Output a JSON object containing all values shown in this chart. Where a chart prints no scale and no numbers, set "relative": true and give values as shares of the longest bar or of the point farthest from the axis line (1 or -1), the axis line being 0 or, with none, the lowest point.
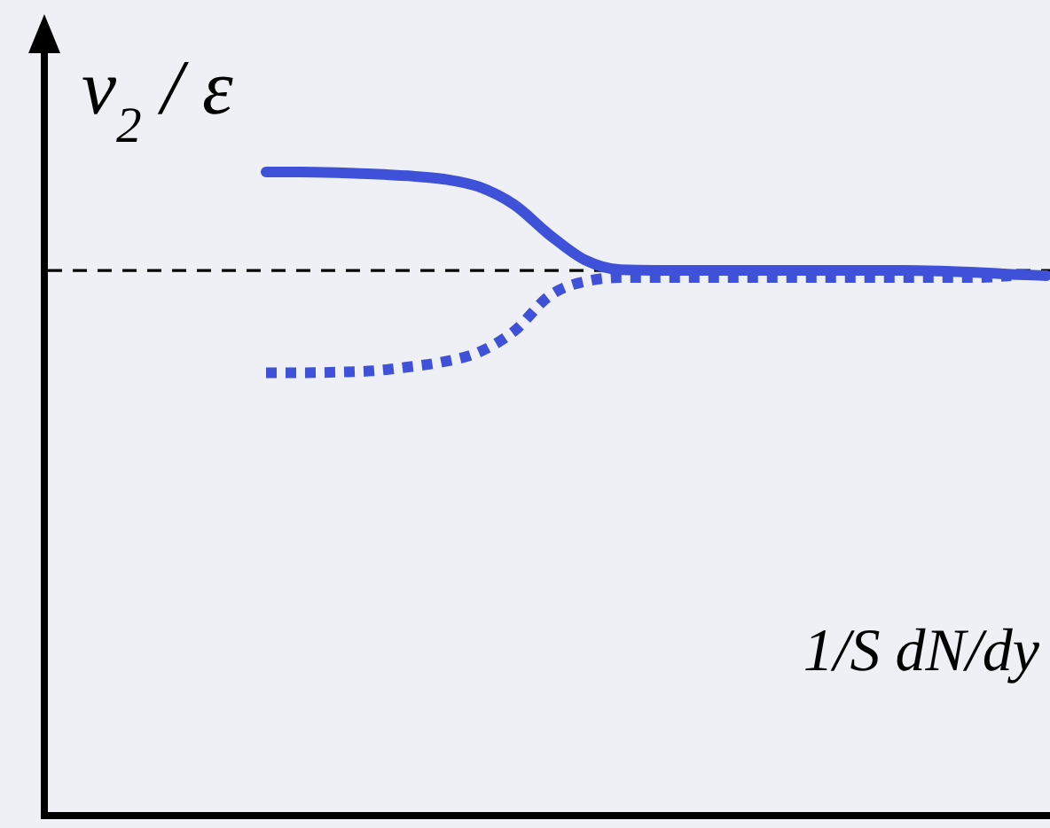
{
  "chart_data": {
    "type": "line",
    "relative": true,
    "ylabel": "v$_{2}$ / ε",
    "xlabel": "1/S dN/dy",
    "categories": [
      null,
      null,
      null,
      null,
      null,
      null,
      null,
      null,
      null,
      null,
      null,
      null,
      null,
      null,
      null,
      null,
      null,
      null,
      null,
      null,
      null,
      null,
      null
    ],
    "series": [
      {
        "color": "#3f51d9",
        "line_style": "solid",
        "values": [
          1.0,
          1.0,
          0.999,
          0.997,
          0.994,
          0.989,
          0.977,
          0.949,
          0.902,
          0.863,
          0.848,
          0.847,
          0.847,
          0.847,
          0.847,
          0.847,
          0.847,
          0.847,
          0.847,
          0.846,
          0.844,
          0.841,
          0.839
        ]
      },
      {
        "color": "#3f51d9",
        "line_style": "dotted",
        "values": [
          0.688,
          0.688,
          0.689,
          0.691,
          0.697,
          0.705,
          0.72,
          0.753,
          0.808,
          0.83,
          0.836,
          0.836,
          0.836,
          0.836,
          0.836,
          0.836,
          0.836,
          0.836,
          0.836,
          0.836,
          0.836,
          0.839,
          null
        ]
      }
    ],
    "ref_lines": [
      {
        "axis": "y",
        "value": 0.847,
        "color": "#000000",
        "line_style": "dashed"
      }
    ]
  }
}
